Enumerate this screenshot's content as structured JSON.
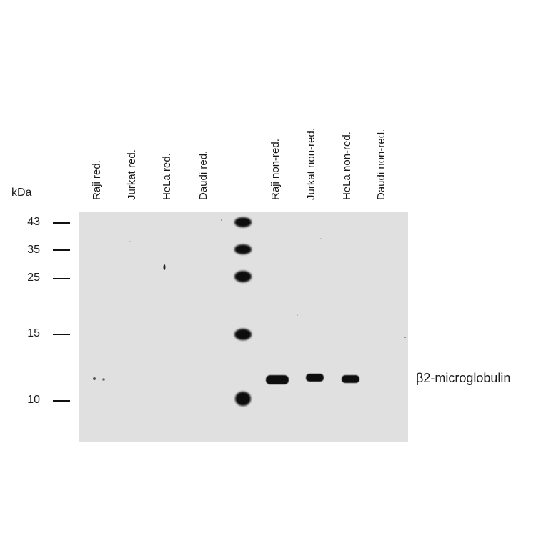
{
  "lanes": [
    {
      "label": "Raji red."
    },
    {
      "label": "Jurkat red."
    },
    {
      "label": "HeLa red."
    },
    {
      "label": "Daudi red."
    },
    {
      "label": "Raji non-red."
    },
    {
      "label": "Jurkat non-red."
    },
    {
      "label": "HeLa non-red."
    },
    {
      "label": "Daudi non-red."
    }
  ],
  "unit": "kDa",
  "markers": [
    {
      "value": "43"
    },
    {
      "value": "35"
    },
    {
      "value": "25"
    },
    {
      "value": "15"
    },
    {
      "value": "10"
    }
  ],
  "band_label": "β2-microglobulin",
  "colors": {
    "membrane": "#e0e0e0",
    "band": "#0a0a0a"
  }
}
